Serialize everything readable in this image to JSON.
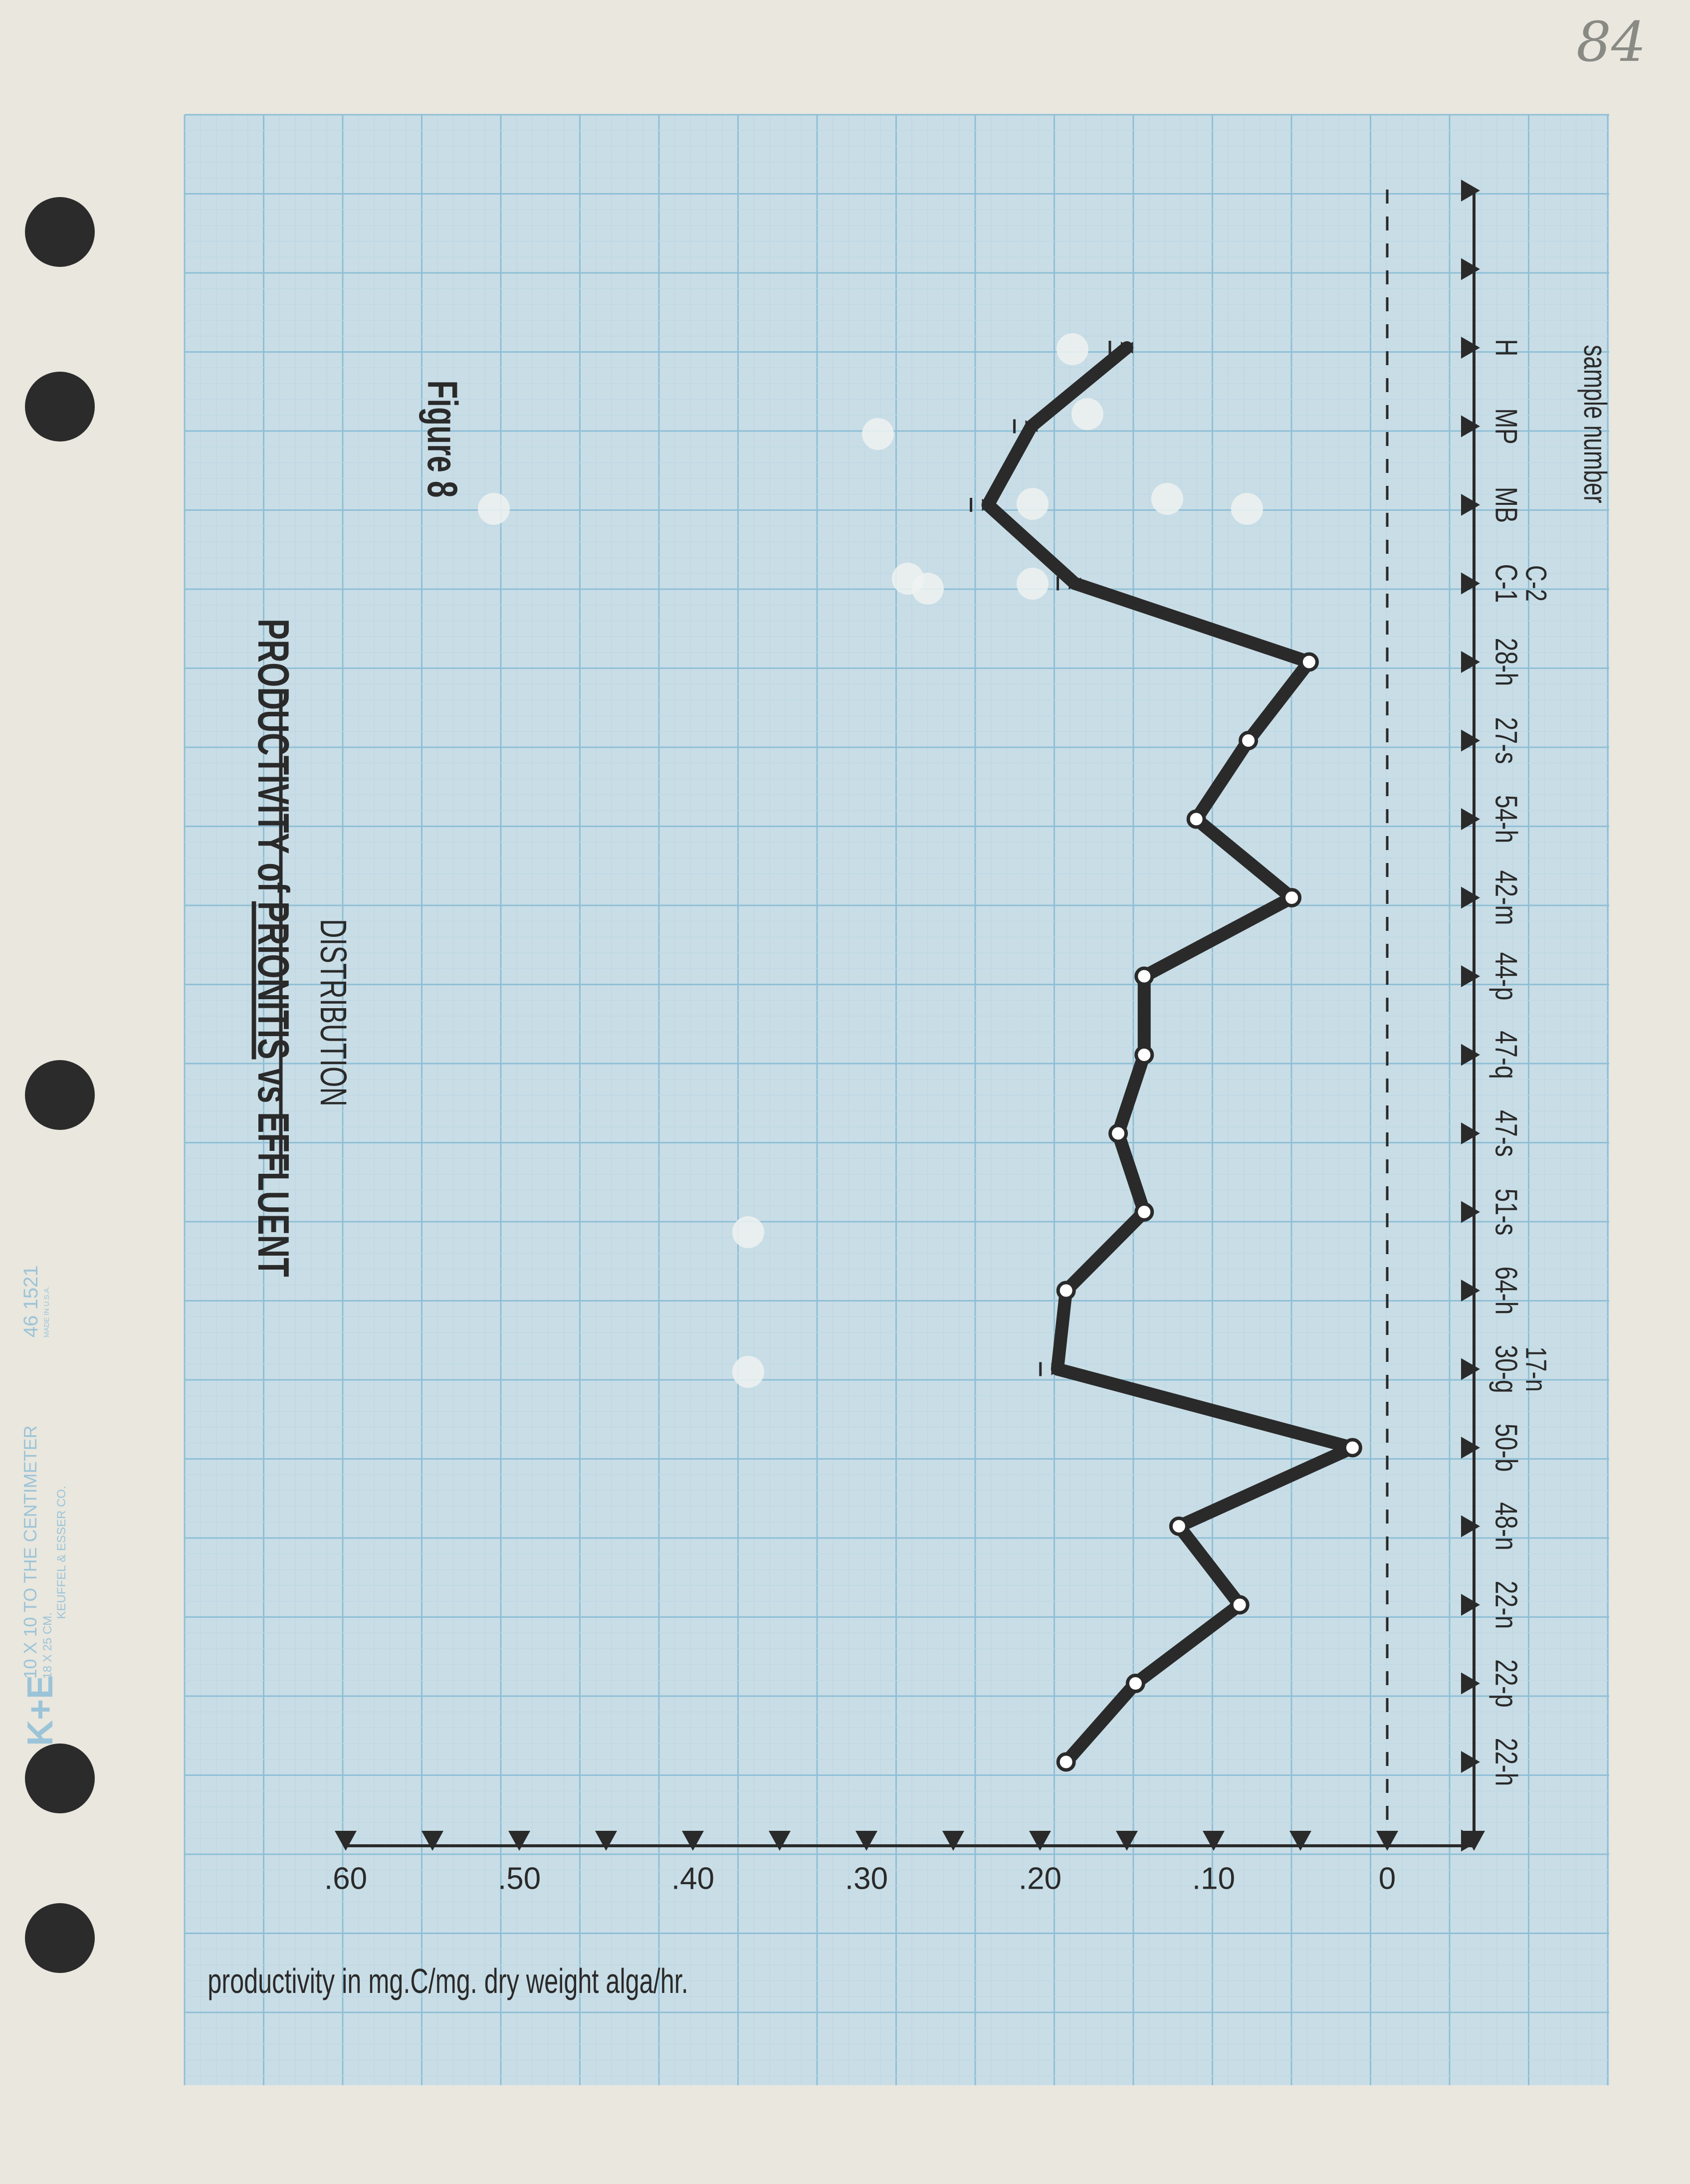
{
  "page_number": "84",
  "paper_imprint": {
    "logo": "K+E",
    "line1": "10 X 10 TO THE CENTIMETER",
    "line1_sub": "18 X 25 CM.",
    "line2": "KEUFFEL & ESSER CO.",
    "code": "46 1521",
    "made_in": "MADE IN U.S.A."
  },
  "colors": {
    "paper": "#e9e7de",
    "grid_fine": "#bcd8e4",
    "grid_major": "#8fbfd6",
    "ink": "#2a2a2a"
  },
  "chart_data": {
    "type": "line",
    "orientation": "rotated-90-ccw",
    "title_line1_parts": [
      "PRODUCTIVITY",
      " of ",
      "PRIONITIS",
      " vs ",
      "EFFLUENT"
    ],
    "title_line2": "DISTRIBUTION",
    "figure_label": "Figure 8",
    "ylabel": "productivity   in mg.C/mg. dry weight alga/hr.",
    "xlabel": "sample number",
    "ylim": [
      -0.05,
      0.6
    ],
    "y_tick_labels": [
      ".60",
      ".50",
      ".40",
      ".30",
      ".20",
      ".10",
      "0"
    ],
    "y_tick_values": [
      0.6,
      0.5,
      0.4,
      0.3,
      0.2,
      0.1,
      0.0
    ],
    "baseline_dashed_at": 0.0,
    "categories": [
      {
        "label": "22-h"
      },
      {
        "label": "22-p"
      },
      {
        "label": "22-n"
      },
      {
        "label": "48-n"
      },
      {
        "label": "50-b"
      },
      {
        "label": "30-g",
        "sub": "17-n"
      },
      {
        "label": "64-h"
      },
      {
        "label": "51-s"
      },
      {
        "label": "47-s"
      },
      {
        "label": "47-q"
      },
      {
        "label": "44-p"
      },
      {
        "label": "42-m"
      },
      {
        "label": "54-h"
      },
      {
        "label": "27-s"
      },
      {
        "label": "28-h"
      },
      {
        "label": "C-1",
        "sub": "C-2"
      },
      {
        "label": "MB"
      },
      {
        "label": "MP"
      },
      {
        "label": "H"
      }
    ],
    "series": [
      {
        "values": [
          0.185,
          0.145,
          0.085,
          0.12,
          0.02,
          0.19,
          0.185,
          0.14,
          0.155,
          0.14,
          0.14,
          0.055,
          0.11,
          0.08,
          0.045,
          0.18,
          0.23,
          0.205,
          0.15
        ],
        "markers": [
          "o",
          "o",
          "o",
          "o",
          "o",
          "x",
          "o",
          "o",
          "o",
          "o",
          "o",
          "o",
          "o",
          "o",
          "o",
          "x",
          "x",
          "x",
          "x"
        ]
      }
    ],
    "marker_x_label": "x"
  }
}
